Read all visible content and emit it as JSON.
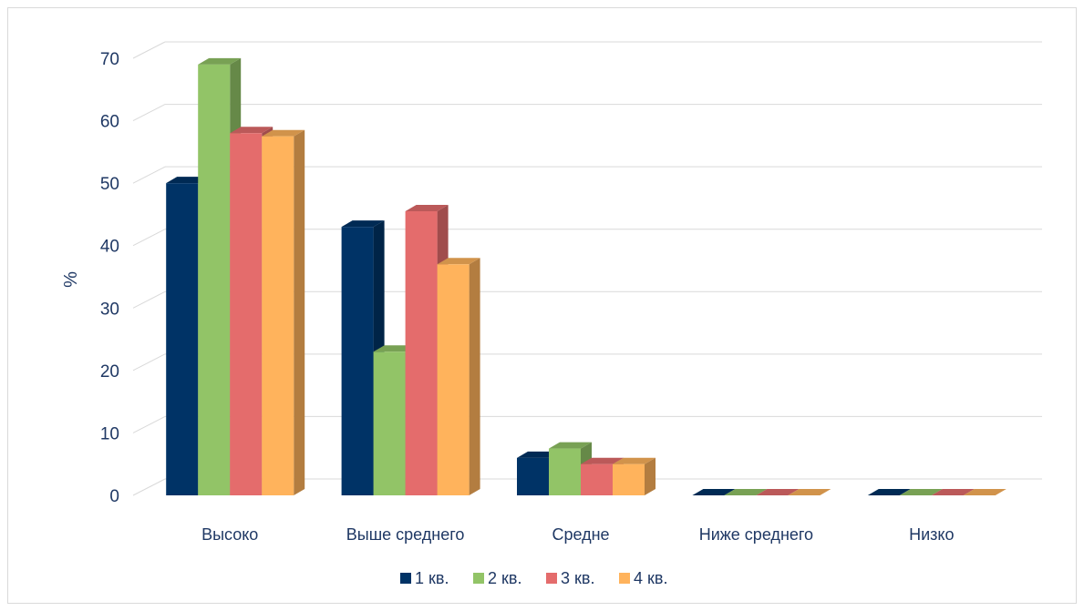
{
  "chart_data": {
    "type": "bar",
    "title": "",
    "xlabel": "",
    "ylabel": "%",
    "ylim": [
      0,
      70
    ],
    "yticks": [
      0,
      10,
      20,
      30,
      40,
      50,
      60,
      70
    ],
    "categories": [
      "Высоко",
      "Выше среднего",
      "Средне",
      "Ниже среднего",
      "Низко"
    ],
    "series": [
      {
        "name": "1 кв.",
        "values": [
          50,
          43,
          6,
          0,
          0
        ],
        "color": "#003366"
      },
      {
        "name": "2 кв.",
        "values": [
          69,
          23,
          7.5,
          0,
          0
        ],
        "color": "#92c467"
      },
      {
        "name": "3 кв.",
        "values": [
          58,
          45.5,
          5,
          0,
          0
        ],
        "color": "#e46c6c"
      },
      {
        "name": "4 кв.",
        "values": [
          57.5,
          37,
          5,
          0,
          0
        ],
        "color": "#ffb35c"
      }
    ],
    "grid": true,
    "legend_position": "bottom",
    "style": "3d-clustered-column"
  }
}
